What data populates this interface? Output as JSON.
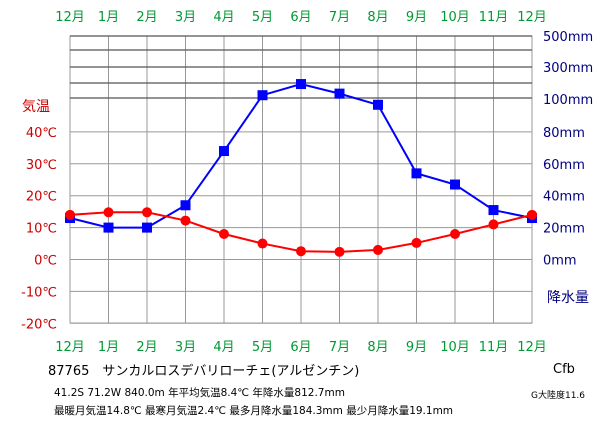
{
  "chart_data": {
    "type": "line",
    "categories": [
      "12月",
      "1月",
      "2月",
      "3月",
      "4月",
      "5月",
      "6月",
      "7月",
      "8月",
      "9月",
      "10月",
      "11月",
      "12月"
    ],
    "left_axis": {
      "label": "気温",
      "ticks": [
        40,
        30,
        20,
        10,
        0,
        -10,
        -20
      ],
      "tick_labels": [
        "40℃",
        "30℃",
        "20℃",
        "10℃",
        "0℃",
        "-10℃",
        "-20℃"
      ],
      "ylim": [
        -20,
        40
      ],
      "color": "#cc0000"
    },
    "right_axis": {
      "label": "降水量",
      "tick_labels_upper": [
        "500mm",
        "300mm",
        "100mm"
      ],
      "tick_labels_lower": [
        "80mm",
        "60mm",
        "40mm",
        "20mm",
        "0mm"
      ],
      "color": "#000080"
    },
    "series": [
      {
        "values": [
          14.0,
          14.8,
          14.8,
          12.2,
          8.0,
          5.0,
          2.6,
          2.4,
          3.0,
          5.2,
          8.0,
          11.0,
          14.0
        ],
        "color": "#ff0000",
        "marker": "circle",
        "axis": "left"
      },
      {
        "values": [
          26,
          20,
          20,
          34,
          68,
          103,
          110,
          104,
          97,
          54,
          47,
          31,
          26
        ],
        "color": "#0000ff",
        "marker": "square",
        "axis": "right"
      }
    ],
    "month_label_color": "#009933",
    "grid": true
  },
  "station": {
    "line": "87765　サンカルロスデバリローチェ(アルゼンチン)",
    "details1": "41.2S  71.2W  840.0m  年平均気温8.4℃  年降水量812.7mm",
    "details2": "最暖月気温14.8℃  最寒月気温2.4℃  最多月降水量184.3mm  最少月降水量19.1mm",
    "climate": "Cfb",
    "continent": "G大陸度11.6"
  }
}
